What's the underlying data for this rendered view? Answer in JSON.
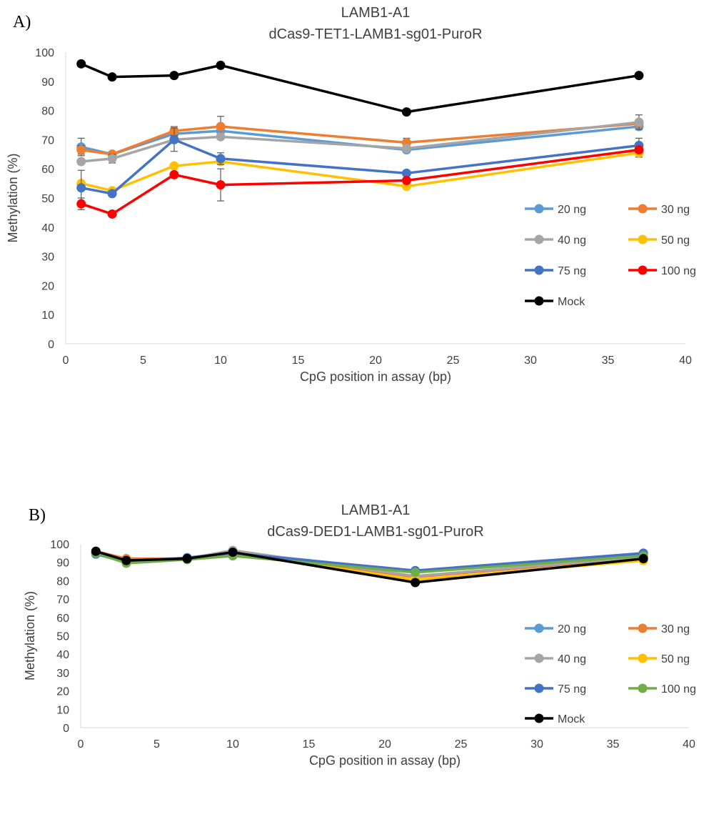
{
  "chart_data": [
    {
      "type": "line",
      "panel_label": "A)",
      "title": "LAMB1-A1",
      "subtitle": "dCas9-TET1-LAMB1-sg01-PuroR",
      "xlabel": "CpG position in assay (bp)",
      "ylabel": "Methylation (%)",
      "xlim": [
        0,
        40
      ],
      "ylim": [
        0,
        100
      ],
      "xticks": [
        0,
        5,
        10,
        15,
        20,
        25,
        30,
        35,
        40
      ],
      "yticks": [
        0,
        10,
        20,
        30,
        40,
        50,
        60,
        70,
        80,
        90,
        100
      ],
      "grid": false,
      "legend_position": "right",
      "x": [
        1,
        3,
        7,
        10,
        22,
        37
      ],
      "series": [
        {
          "name": "20 ng",
          "color": "#5B9BD5",
          "values": [
            67.5,
            65.0,
            72.0,
            73.0,
            66.5,
            74.5
          ],
          "errors": [
            3.0,
            0,
            1.5,
            2.0,
            0,
            0
          ]
        },
        {
          "name": "30 ng",
          "color": "#ED7D31",
          "values": [
            66.5,
            65.0,
            73.0,
            74.5,
            69.0,
            75.5
          ],
          "errors": [
            1.5,
            0,
            1.5,
            3.5,
            1.5,
            0
          ]
        },
        {
          "name": "40 ng",
          "color": "#A5A5A5",
          "values": [
            62.5,
            63.5,
            70.0,
            71.0,
            67.0,
            76.0
          ],
          "errors": [
            0,
            1.5,
            0,
            0,
            0,
            2.5
          ]
        },
        {
          "name": "50 ng",
          "color": "#FFC000",
          "values": [
            55.0,
            52.5,
            61.0,
            62.5,
            54.0,
            65.5
          ],
          "errors": [
            0,
            0,
            0,
            0,
            0,
            1.5
          ]
        },
        {
          "name": "75 ng",
          "color": "#4472C4",
          "values": [
            53.5,
            51.5,
            70.0,
            63.5,
            58.5,
            68.0
          ],
          "errors": [
            6.0,
            0,
            4.0,
            2.0,
            0,
            2.5
          ]
        },
        {
          "name": "100 ng",
          "color": "#FF0000",
          "values": [
            48.0,
            44.5,
            58.0,
            54.5,
            56.0,
            66.5
          ],
          "errors": [
            2.0,
            0,
            0,
            5.5,
            0,
            0
          ]
        },
        {
          "name": "Mock",
          "color": "#000000",
          "values": [
            96.0,
            91.5,
            92.0,
            95.5,
            79.5,
            92.0
          ],
          "errors": [
            0,
            0,
            0,
            0,
            0,
            0
          ]
        }
      ]
    },
    {
      "type": "line",
      "panel_label": "B)",
      "title": "LAMB1-A1",
      "subtitle": "dCas9-DED1-LAMB1-sg01-PuroR",
      "xlabel": "CpG position in assay (bp)",
      "ylabel": "Methylation (%)",
      "xlim": [
        0,
        40
      ],
      "ylim": [
        0,
        100
      ],
      "xticks": [
        0,
        5,
        10,
        15,
        20,
        25,
        30,
        35,
        40
      ],
      "yticks": [
        0,
        10,
        20,
        30,
        40,
        50,
        60,
        70,
        80,
        90,
        100
      ],
      "grid": false,
      "legend_position": "right",
      "x": [
        1,
        3,
        7,
        10,
        22,
        37
      ],
      "series": [
        {
          "name": "20 ng",
          "color": "#5B9BD5",
          "values": [
            94.5,
            90.0,
            92.5,
            95.5,
            85.0,
            94.5
          ],
          "errors": [
            0,
            0,
            0,
            0,
            0,
            0
          ]
        },
        {
          "name": "30 ng",
          "color": "#ED7D31",
          "values": [
            96.0,
            92.0,
            92.0,
            96.0,
            82.0,
            92.5
          ],
          "errors": [
            0,
            0,
            0,
            0,
            0,
            0
          ]
        },
        {
          "name": "40 ng",
          "color": "#A5A5A5",
          "values": [
            95.5,
            91.0,
            92.0,
            96.5,
            82.5,
            93.0
          ],
          "errors": [
            0,
            0,
            0,
            0,
            0,
            0
          ]
        },
        {
          "name": "50 ng",
          "color": "#FFC000",
          "values": [
            95.5,
            91.0,
            92.0,
            95.0,
            80.5,
            91.0
          ],
          "errors": [
            0,
            0,
            0,
            0,
            0,
            0
          ]
        },
        {
          "name": "75 ng",
          "color": "#4472C4",
          "values": [
            94.5,
            90.5,
            92.5,
            95.0,
            85.5,
            95.0
          ],
          "errors": [
            0,
            0,
            0,
            0,
            0,
            0
          ]
        },
        {
          "name": "100 ng",
          "color": "#70AD47",
          "values": [
            95.0,
            89.5,
            91.5,
            93.5,
            84.5,
            93.5
          ],
          "errors": [
            0,
            0,
            0,
            0,
            0,
            0
          ]
        },
        {
          "name": "Mock",
          "color": "#000000",
          "values": [
            96.0,
            91.0,
            92.0,
            95.5,
            79.0,
            92.0
          ],
          "errors": [
            0,
            0,
            0,
            0,
            0,
            0
          ]
        }
      ]
    }
  ]
}
